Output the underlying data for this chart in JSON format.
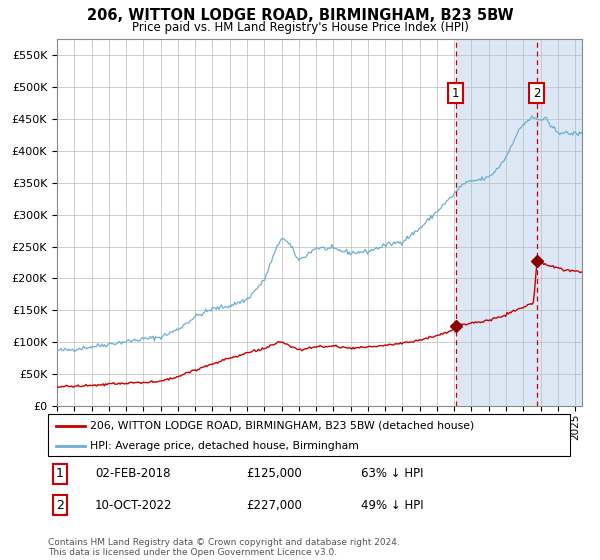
{
  "title": "206, WITTON LODGE ROAD, BIRMINGHAM, B23 5BW",
  "subtitle": "Price paid vs. HM Land Registry's House Price Index (HPI)",
  "legend_line1": "206, WITTON LODGE ROAD, BIRMINGHAM, B23 5BW (detached house)",
  "legend_line2": "HPI: Average price, detached house, Birmingham",
  "annotation1_label": "1",
  "annotation1_date": "02-FEB-2018",
  "annotation1_price": 125000,
  "annotation1_pct": "63% ↓ HPI",
  "annotation2_label": "2",
  "annotation2_date": "10-OCT-2022",
  "annotation2_price": 227000,
  "annotation2_pct": "49% ↓ HPI",
  "footer": "Contains HM Land Registry data © Crown copyright and database right 2024.\nThis data is licensed under the Open Government Licence v3.0.",
  "hpi_color": "#6baed6",
  "price_color": "#cc0000",
  "marker_color": "#8b0000",
  "dashed_line_color": "#cc0000",
  "grid_color": "#bbbbbb",
  "background_color": "#ffffff",
  "highlight_bg": "#dce8f5",
  "annotation_box_color": "#cc0000",
  "ylim": [
    0,
    575000
  ],
  "yticks": [
    0,
    50000,
    100000,
    150000,
    200000,
    250000,
    300000,
    350000,
    400000,
    450000,
    500000,
    550000
  ],
  "sale1_year": 2018.085,
  "sale2_year": 2022.78,
  "xmin": 1995,
  "xmax": 2025.4
}
